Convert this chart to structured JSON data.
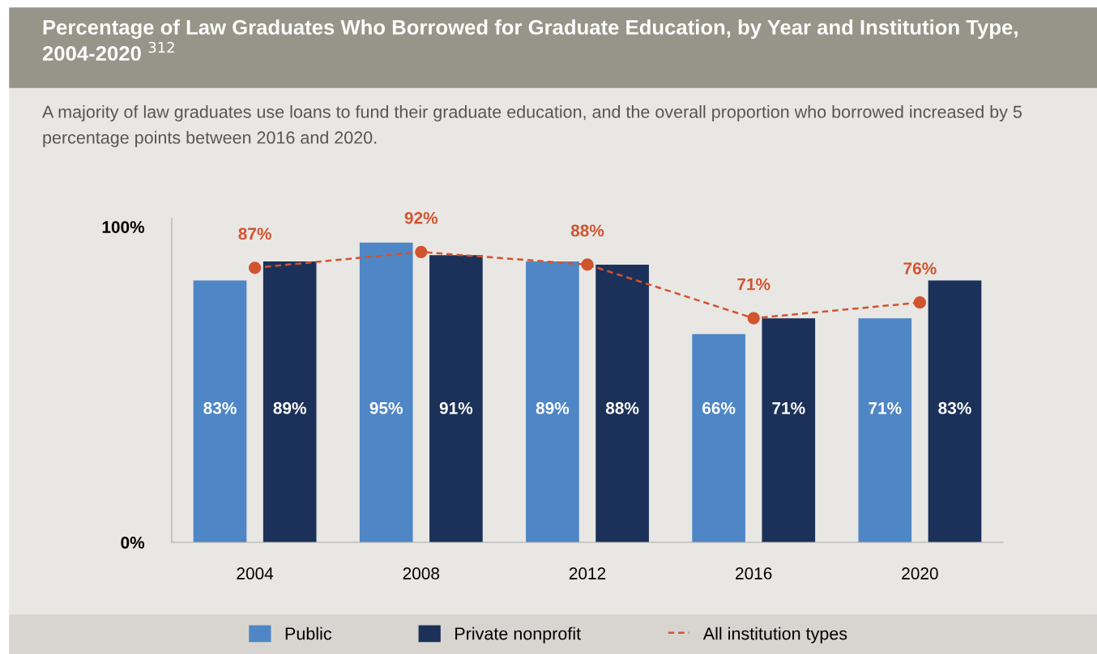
{
  "chart_data": {
    "type": "bar",
    "title": "Percentage of Law Graduates Who Borrowed for Graduate Education, by Year and Institution Type, 2004-2020 $^{312}$",
    "subtitle": "A majority of law graduates use loans to fund their graduate education, and the overall proportion who borrowed increased by 5 percentage points between 2016 and 2020.",
    "categories": [
      "2004",
      "2008",
      "2012",
      "2016",
      "2020"
    ],
    "series": [
      {
        "name": "Public",
        "color": "#4f86c5",
        "values": [
          83,
          95,
          89,
          66,
          71
        ],
        "value_labels": [
          "83%",
          "95%",
          "89%",
          "66%",
          "71%"
        ]
      },
      {
        "name": "Private nonprofit",
        "color": "#1b3159",
        "values": [
          89,
          91,
          88,
          71,
          83
        ],
        "value_labels": [
          "89%",
          "91%",
          "88%",
          "71%",
          "83%"
        ]
      },
      {
        "name": "All institution types",
        "type": "line",
        "color": "#d1542f",
        "line_style": "dashed",
        "marker": "circle",
        "values": [
          87,
          92,
          88,
          71,
          76
        ],
        "value_labels": [
          "87%",
          "92%",
          "88%",
          "71%",
          "76%"
        ]
      }
    ],
    "ylim": [
      0,
      102.6
    ],
    "yticks": [
      {
        "value": 0,
        "label": "0%"
      },
      {
        "value": 100,
        "label": "100%"
      }
    ],
    "grid": false,
    "legend": "bottom"
  }
}
